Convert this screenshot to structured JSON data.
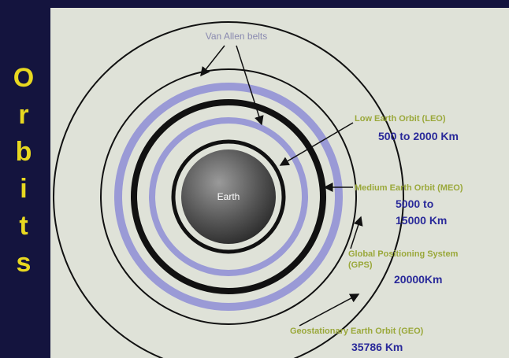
{
  "sidebar": {
    "letters": [
      "O",
      "r",
      "b",
      "i",
      "t",
      "s"
    ]
  },
  "diagram": {
    "belts_label": "Van Allen belts",
    "center_label": "Earth",
    "orbits": [
      {
        "name_lines": [
          "Low Earth Orbit (LEO)"
        ],
        "range_lines": [
          "500 to 2000 Km"
        ]
      },
      {
        "name_lines": [
          "Medium Earth Orbit (MEO)"
        ],
        "range_lines": [
          "5000 to",
          "15000 Km"
        ]
      },
      {
        "name_lines": [
          "Global Positioning System",
          "(GPS)"
        ],
        "range_lines": [
          "20000Km"
        ]
      },
      {
        "name_lines": [
          "Geostationary Earth Orbit (GEO)"
        ],
        "range_lines": [
          "35786 Km"
        ]
      }
    ]
  }
}
